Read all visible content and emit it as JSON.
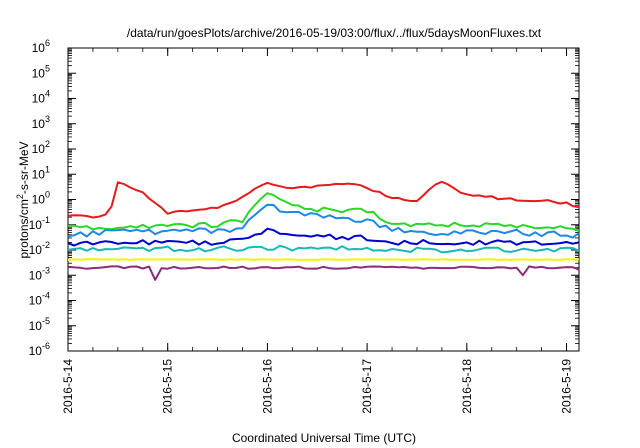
{
  "chart_data": {
    "type": "line",
    "title": "/data/run/goesPlots/archive/2016-05-19/03:00/flux/../flux/5daysMoonFluxes.txt",
    "xlabel": "Coordinated Universal Time (UTC)",
    "ylabel_main": "protons/cm",
    "ylabel_sup": "2",
    "ylabel_tail": "-s-sr-MeV",
    "y_scale": "log",
    "ylim": [
      1e-06,
      1000000.0
    ],
    "y_ticks": [
      {
        "value": 1e-06,
        "base": "10",
        "exp": "-6"
      },
      {
        "value": 1e-05,
        "base": "10",
        "exp": "-5"
      },
      {
        "value": 0.0001,
        "base": "10",
        "exp": "-4"
      },
      {
        "value": 0.001,
        "base": "10",
        "exp": "-3"
      },
      {
        "value": 0.01,
        "base": "10",
        "exp": "-2"
      },
      {
        "value": 0.1,
        "base": "10",
        "exp": "-1"
      },
      {
        "value": 1,
        "base": "10",
        "exp": "0"
      },
      {
        "value": 10,
        "base": "10",
        "exp": "1"
      },
      {
        "value": 100,
        "base": "10",
        "exp": "2"
      },
      {
        "value": 1000,
        "base": "10",
        "exp": "3"
      },
      {
        "value": 10000,
        "base": "10",
        "exp": "4"
      },
      {
        "value": 100000,
        "base": "10",
        "exp": "5"
      },
      {
        "value": 1000000,
        "base": "10",
        "exp": "6"
      }
    ],
    "xlim": [
      "2016-05-14 00:00",
      "2016-05-19 03:00"
    ],
    "x_ticks": [
      "2016-5-14",
      "2016-5-15",
      "2016-5-16",
      "2016-5-17",
      "2016-5-18",
      "2016-5-19"
    ],
    "grid": false,
    "series": [
      {
        "color": "#e41a1c",
        "x": [
          "2016-05-14 00:00",
          "2016-05-14 06:00",
          "2016-05-14 10:00",
          "2016-05-14 11:00",
          "2016-05-14 12:00",
          "2016-05-14 16:00",
          "2016-05-14 20:00",
          "2016-05-15 00:00",
          "2016-05-15 06:00",
          "2016-05-15 12:00",
          "2016-05-15 18:00",
          "2016-05-16 00:00",
          "2016-05-16 06:00",
          "2016-05-16 12:00",
          "2016-05-16 18:00",
          "2016-05-17 00:00",
          "2016-05-17 06:00",
          "2016-05-17 12:00",
          "2016-05-17 16:00",
          "2016-05-17 18:00",
          "2016-05-18 00:00",
          "2016-05-18 06:00",
          "2016-05-18 12:00",
          "2016-05-18 18:00",
          "2016-05-19 00:00",
          "2016-05-19 03:00"
        ],
        "y": [
          0.25,
          0.2,
          0.3,
          1.0,
          4.5,
          3.0,
          1.0,
          0.3,
          0.35,
          0.5,
          1.2,
          5.0,
          2.5,
          3.5,
          4.5,
          3.0,
          1.2,
          0.8,
          4.0,
          5.5,
          1.5,
          1.2,
          1.0,
          0.9,
          0.7,
          0.45
        ]
      },
      {
        "color": "#2bd62b",
        "x": [
          "2016-05-14 00:00",
          "2016-05-14 12:00",
          "2016-05-15 00:00",
          "2016-05-15 12:00",
          "2016-05-15 18:00",
          "2016-05-16 00:00",
          "2016-05-16 06:00",
          "2016-05-16 12:00",
          "2016-05-17 00:00",
          "2016-05-17 06:00",
          "2016-05-17 12:00",
          "2016-05-18 00:00",
          "2016-05-18 12:00",
          "2016-05-19 00:00",
          "2016-05-19 03:00"
        ],
        "y": [
          0.08,
          0.08,
          0.09,
          0.1,
          0.15,
          1.8,
          0.6,
          0.4,
          0.35,
          0.12,
          0.1,
          0.1,
          0.09,
          0.08,
          0.07
        ]
      },
      {
        "color": "#1e88e5",
        "x": [
          "2016-05-14 00:00",
          "2016-05-14 12:00",
          "2016-05-15 00:00",
          "2016-05-15 12:00",
          "2016-05-15 18:00",
          "2016-05-16 00:00",
          "2016-05-16 06:00",
          "2016-05-16 12:00",
          "2016-05-17 00:00",
          "2016-05-17 06:00",
          "2016-05-17 12:00",
          "2016-05-18 00:00",
          "2016-05-18 12:00",
          "2016-05-19 00:00",
          "2016-05-19 03:00"
        ],
        "y": [
          0.04,
          0.05,
          0.05,
          0.06,
          0.07,
          0.6,
          0.3,
          0.2,
          0.15,
          0.06,
          0.05,
          0.05,
          0.05,
          0.04,
          0.04
        ]
      },
      {
        "color": "#0000cc",
        "x": [
          "2016-05-14 00:00",
          "2016-05-14 12:00",
          "2016-05-15 00:00",
          "2016-05-15 12:00",
          "2016-05-15 18:00",
          "2016-05-16 00:00",
          "2016-05-16 06:00",
          "2016-05-16 12:00",
          "2016-05-17 00:00",
          "2016-05-17 06:00",
          "2016-05-17 12:00",
          "2016-05-18 00:00",
          "2016-05-18 12:00",
          "2016-05-19 00:00",
          "2016-05-19 03:00"
        ],
        "y": [
          0.018,
          0.02,
          0.02,
          0.02,
          0.025,
          0.06,
          0.04,
          0.035,
          0.03,
          0.02,
          0.02,
          0.02,
          0.02,
          0.02,
          0.018
        ]
      },
      {
        "color": "#17b8b8",
        "x": [
          "2016-05-14 00:00",
          "2016-05-14 12:00",
          "2016-05-15 00:00",
          "2016-05-15 12:00",
          "2016-05-16 00:00",
          "2016-05-16 12:00",
          "2016-05-17 00:00",
          "2016-05-17 12:00",
          "2016-05-18 00:00",
          "2016-05-18 12:00",
          "2016-05-19 00:00",
          "2016-05-19 03:00"
        ],
        "y": [
          0.01,
          0.01,
          0.011,
          0.011,
          0.012,
          0.012,
          0.011,
          0.01,
          0.01,
          0.01,
          0.01,
          0.01
        ]
      },
      {
        "color": "#f2f20a",
        "x": [
          "2016-05-14 00:00",
          "2016-05-15 00:00",
          "2016-05-16 00:00",
          "2016-05-17 00:00",
          "2016-05-18 00:00",
          "2016-05-19 00:00",
          "2016-05-19 03:00"
        ],
        "y": [
          0.0042,
          0.0042,
          0.0042,
          0.0042,
          0.0042,
          0.0042,
          0.0042
        ]
      },
      {
        "color": "#8e2b7b",
        "x": [
          "2016-05-14 00:00",
          "2016-05-14 20:00",
          "2016-05-14 21:00",
          "2016-05-14 22:00",
          "2016-05-15 12:00",
          "2016-05-16 00:00",
          "2016-05-17 00:00",
          "2016-05-18 00:00",
          "2016-05-18 12:00",
          "2016-05-18 13:00",
          "2016-05-18 14:00",
          "2016-05-19 00:00",
          "2016-05-19 03:00"
        ],
        "y": [
          0.002,
          0.002,
          0.0006,
          0.002,
          0.002,
          0.002,
          0.002,
          0.002,
          0.002,
          0.0006,
          0.002,
          0.002,
          0.0018
        ]
      }
    ]
  }
}
